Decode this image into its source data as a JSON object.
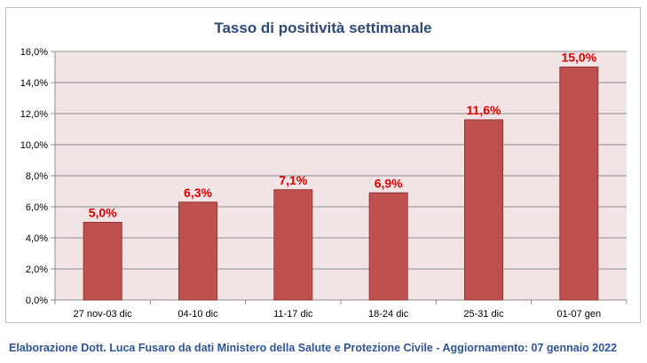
{
  "chart_data": {
    "type": "bar",
    "title": "Tasso di positività settimanale",
    "categories": [
      "27 nov-03 dic",
      "04-10 dic",
      "11-17 dic",
      "18-24 dic",
      "25-31 dic",
      "01-07 gen"
    ],
    "values": [
      5.0,
      6.3,
      7.1,
      6.9,
      11.6,
      15.0
    ],
    "data_labels": [
      "5,0%",
      "6,3%",
      "7,1%",
      "6,9%",
      "11,6%",
      "15,0%"
    ],
    "ylim": [
      0,
      16
    ],
    "yticks": [
      0,
      2,
      4,
      6,
      8,
      10,
      12,
      14,
      16
    ],
    "ytick_labels": [
      "0,0%",
      "2,0%",
      "4,0%",
      "6,0%",
      "8,0%",
      "10,0%",
      "12,0%",
      "14,0%",
      "16,0%"
    ],
    "grid": true,
    "legend": "none",
    "colors": {
      "bar": "#c0504d",
      "bar_border": "#8c3836",
      "plot_background": "#f2e4e4",
      "data_label": "#e00000",
      "title": "#2e4a7a"
    }
  },
  "footer": "Elaborazione Dott. Luca Fusaro da dati Ministero della Salute e Protezione Civile - Aggiornamento: 07 gennaio 2022"
}
